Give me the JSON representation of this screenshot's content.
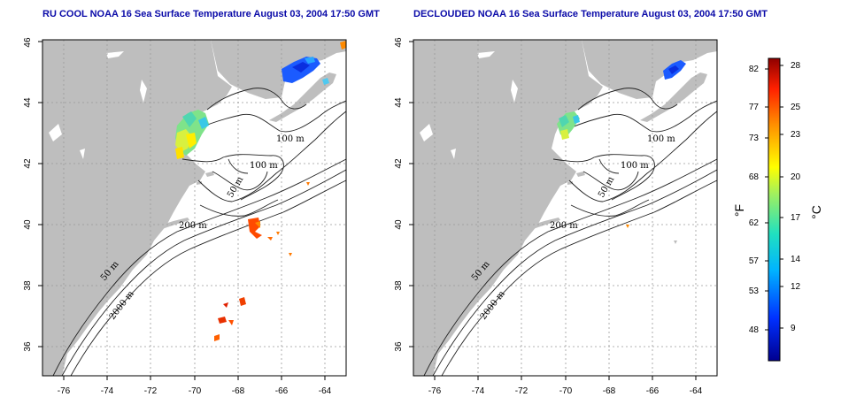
{
  "panels": [
    {
      "title": "RU COOL NOAA 16 Sea Surface Temperature August 03, 2004 17:50 GMT",
      "contour_labels": {
        "m100a": "100 m",
        "m100b": "100 m",
        "m50a": "50 m",
        "m200": "200 m",
        "m50b": "50 m",
        "m2000": "2000 m"
      }
    },
    {
      "title": "DECLOUDED NOAA 16 Sea Surface Temperature August 03, 2004 17:50 GMT",
      "contour_labels": {
        "m100a": "100 m",
        "m100b": "100 m",
        "m50a": "50 m",
        "m200": "200 m",
        "m50b": "50 m",
        "m2000": "2000 m"
      }
    }
  ],
  "axes": {
    "x_ticks": [
      "-76",
      "-74",
      "-72",
      "-70",
      "-68",
      "-66",
      "-64"
    ],
    "y_ticks": [
      "36",
      "38",
      "40",
      "42",
      "44",
      "46"
    ]
  },
  "colorbar": {
    "f_label": "°F",
    "c_label": "°C",
    "f_ticks": [
      "82",
      "77",
      "73",
      "68",
      "62",
      "57",
      "53",
      "48"
    ],
    "c_ticks": [
      "28",
      "25",
      "23",
      "20",
      "17",
      "14",
      "12",
      "9"
    ]
  },
  "colors": {
    "title": "#0a0aa8",
    "land": "#bebebe",
    "grid": "#9a9a9a"
  }
}
